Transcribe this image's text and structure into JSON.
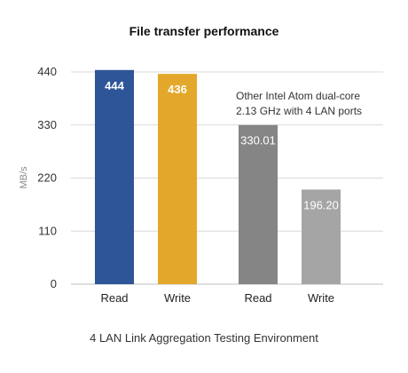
{
  "chart_data": {
    "type": "bar",
    "title": "File transfer performance",
    "ylabel": "MB/s",
    "xlabel": "4 LAN Link Aggregation Testing Environment",
    "ylim": [
      0,
      440
    ],
    "yticks": [
      0,
      110,
      220,
      330,
      440
    ],
    "grid": true,
    "annotation": [
      "Other Intel Atom dual-core",
      "2.13 GHz with 4 LAN ports"
    ],
    "bars": [
      {
        "category": "Read",
        "value": 444,
        "value_label": "444",
        "color": "#2e5597",
        "group": "primary"
      },
      {
        "category": "Write",
        "value": 436,
        "value_label": "436",
        "color": "#e3a82b",
        "group": "primary"
      },
      {
        "category": "Read",
        "value": 330.01,
        "value_label": "330.01",
        "color": "#858585",
        "group": "other"
      },
      {
        "category": "Write",
        "value": 196.2,
        "value_label": "196.20",
        "color": "#a5a5a5",
        "group": "other"
      }
    ]
  }
}
